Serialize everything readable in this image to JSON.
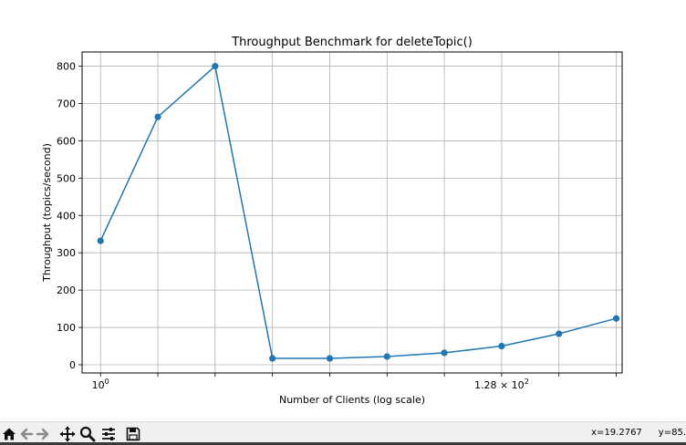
{
  "toolbar": {
    "buttons": [
      {
        "icon": "home-icon"
      },
      {
        "icon": "back-arrow-icon"
      },
      {
        "icon": "forward-arrow-icon"
      },
      {
        "icon": "pan-icon"
      },
      {
        "icon": "zoom-icon"
      },
      {
        "icon": "configure-subplots-icon"
      },
      {
        "icon": "save-icon"
      }
    ]
  },
  "status": {
    "x_readout": "x=19.2767",
    "y_readout": "y=85."
  },
  "colors": {
    "series": "#1f77b4",
    "grid": "#b0b0b0",
    "toolbar_bg": "#f0f0f0"
  },
  "chart_data": {
    "type": "line",
    "title": "Throughput Benchmark for deleteTopic()",
    "xlabel": "Number of Clients (log scale)",
    "ylabel": "Throughput (topics/second)",
    "x_scale": "log2",
    "x": [
      1,
      2,
      4,
      8,
      16,
      32,
      64,
      128,
      256,
      512
    ],
    "series": [
      {
        "values": [
          332,
          664,
          800,
          17,
          17,
          22,
          32,
          50,
          83,
          124
        ],
        "marker": "circle"
      }
    ],
    "ylim": [
      -22,
      838
    ],
    "xlim": [
      0.8,
      550
    ],
    "yticks": [
      0,
      100,
      200,
      300,
      400,
      500,
      600,
      700,
      800
    ],
    "xtick_labels": [
      {
        "value": 1,
        "base": "10",
        "exp": "0"
      },
      {
        "value": 128,
        "base": "1.28 × 10",
        "exp": "2"
      }
    ],
    "grid": true,
    "legend": "none"
  }
}
